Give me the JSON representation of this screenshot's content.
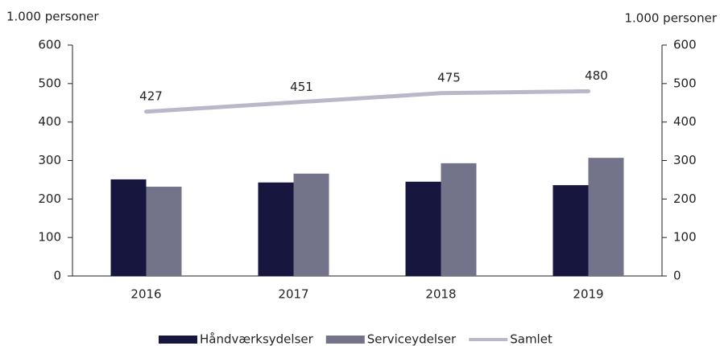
{
  "chart_data": {
    "type": "bar_line",
    "y_label": "1.000 personer",
    "y2_label": "1.000 personer",
    "categories": [
      "2016",
      "2017",
      "2018",
      "2019"
    ],
    "series": [
      {
        "name": "Håndværksydelser",
        "type": "bar",
        "color": "#16163f",
        "values": [
          251,
          243,
          245,
          236
        ]
      },
      {
        "name": "Serviceydelser",
        "type": "bar",
        "color": "#737389",
        "values": [
          232,
          266,
          293,
          307
        ]
      },
      {
        "name": "Samlet",
        "type": "line",
        "axis": "y2",
        "color": "#b9b8c8",
        "values": [
          427,
          451,
          475,
          480
        ]
      }
    ],
    "ylim": [
      0,
      600
    ],
    "yticks": [
      0,
      100,
      200,
      300,
      400,
      500,
      600
    ],
    "y2lim": [
      0,
      600
    ],
    "y2ticks": [
      0,
      100,
      200,
      300,
      400,
      500,
      600
    ],
    "legend": "bottom",
    "grid": false
  }
}
